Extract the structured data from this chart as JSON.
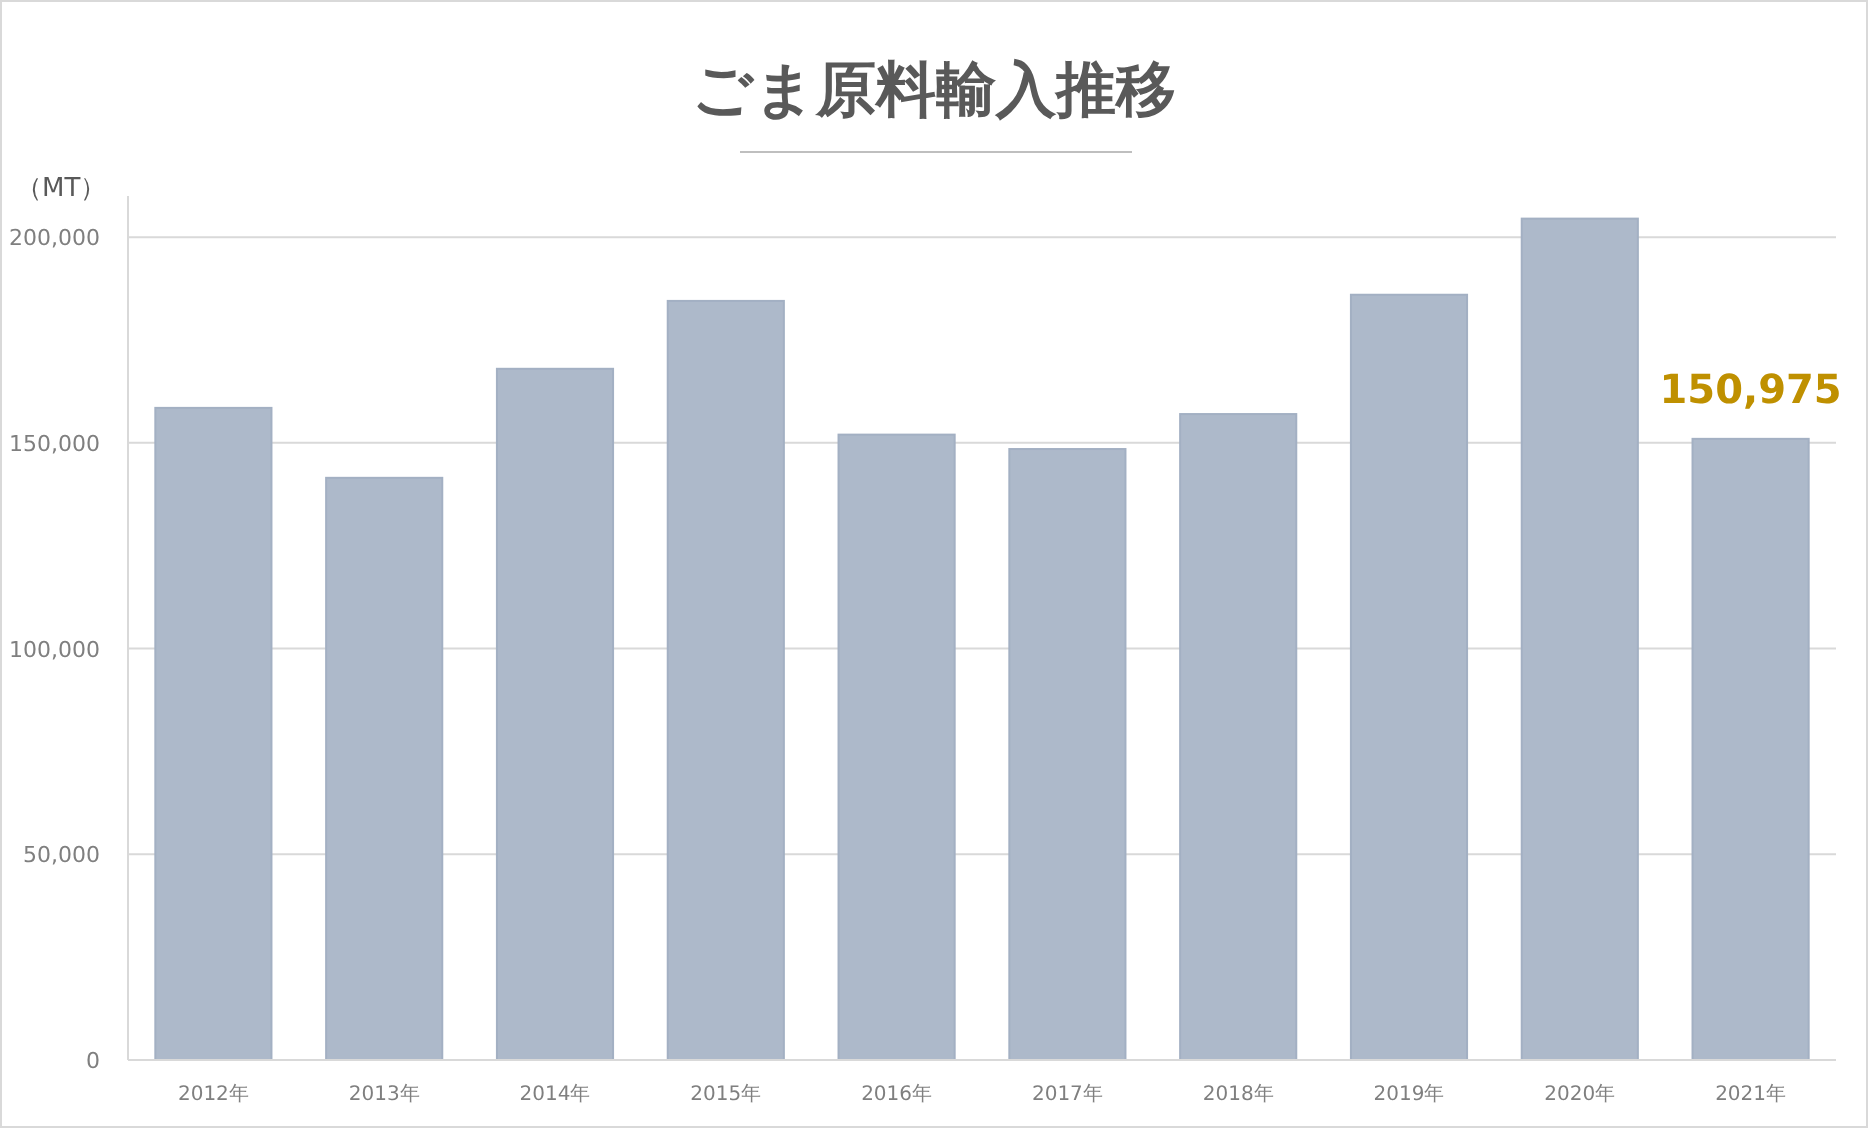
{
  "chart_data": {
    "type": "bar",
    "title": "ごま原料輸入推移",
    "ylabel": "（MT）",
    "categories": [
      "2012年",
      "2013年",
      "2014年",
      "2015年",
      "2016年",
      "2017年",
      "2018年",
      "2019年",
      "2020年",
      "2021年"
    ],
    "values": [
      158500,
      141500,
      168000,
      184500,
      152000,
      148500,
      157000,
      186000,
      204500,
      150975
    ],
    "value_labels": [
      null,
      null,
      null,
      null,
      null,
      null,
      null,
      null,
      null,
      "150,975"
    ],
    "color": "#adb9ca",
    "ylim": [
      0,
      210000
    ],
    "yticks": [
      0,
      {
        "value": 50000,
        "label": "50,000"
      },
      {
        "value": 100000,
        "label": "100,000"
      },
      {
        "value": 150000,
        "label": "150,000"
      },
      {
        "value": 200000,
        "label": "200,000"
      }
    ],
    "grid": "y"
  }
}
